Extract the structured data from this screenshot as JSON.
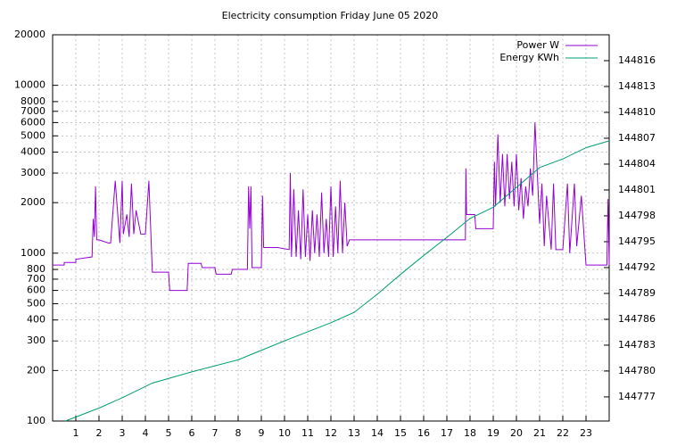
{
  "chart_data": {
    "type": "line",
    "title": "Electricity consumption Friday June 05 2020",
    "yscale": "log",
    "grid": true,
    "legend": "top-right",
    "xlim": [
      0,
      24
    ],
    "xticks": [
      1,
      2,
      3,
      4,
      5,
      6,
      7,
      8,
      9,
      10,
      11,
      12,
      13,
      14,
      15,
      16,
      17,
      18,
      19,
      20,
      21,
      22,
      23
    ],
    "ylim": [
      100,
      20000
    ],
    "yticks": [
      100,
      200,
      300,
      400,
      500,
      600,
      700,
      800,
      1000,
      2000,
      3000,
      4000,
      5000,
      6000,
      7000,
      8000,
      10000,
      20000
    ],
    "y2lim": [
      144774.2,
      144819
    ],
    "y2ticks": [
      144777,
      144780,
      144783,
      144786,
      144789,
      144792,
      144795,
      144798,
      144801,
      144804,
      144807,
      144810,
      144813,
      144816
    ],
    "series": [
      {
        "name": "Power W",
        "color": "#9400d3",
        "x": [
          0,
          0.5,
          0.5,
          1.0,
          1.0,
          1.7,
          1.75,
          1.8,
          1.85,
          1.9,
          2.0,
          2.4,
          2.5,
          2.7,
          2.9,
          3.0,
          3.05,
          3.2,
          3.3,
          3.4,
          3.5,
          3.6,
          3.8,
          4.0,
          4.15,
          4.3,
          4.35,
          5.0,
          5.05,
          5.8,
          5.85,
          6.4,
          6.45,
          7.0,
          7.05,
          7.7,
          7.75,
          8.4,
          8.45,
          8.5,
          8.55,
          8.6,
          9.0,
          9.05,
          9.1,
          9.7,
          10.2,
          10.25,
          10.3,
          10.4,
          10.5,
          10.6,
          10.7,
          10.8,
          10.9,
          11.0,
          11.1,
          11.2,
          11.3,
          11.4,
          11.5,
          11.6,
          11.7,
          11.8,
          11.9,
          12.0,
          12.1,
          12.2,
          12.3,
          12.4,
          12.5,
          12.6,
          12.7,
          12.8,
          17.8,
          17.82,
          17.85,
          18.2,
          18.25,
          19.0,
          19.05,
          19.1,
          19.2,
          19.3,
          19.4,
          19.5,
          19.6,
          19.7,
          19.8,
          19.9,
          20.0,
          20.1,
          20.2,
          20.3,
          20.4,
          20.5,
          20.6,
          20.7,
          20.8,
          20.9,
          21.0,
          21.1,
          21.2,
          21.3,
          21.5,
          21.6,
          21.7,
          22.0,
          22.2,
          22.3,
          22.5,
          22.6,
          22.8,
          23.0,
          23.1,
          23.9,
          23.95,
          24
        ],
        "values": [
          850,
          850,
          880,
          880,
          920,
          950,
          1600,
          1250,
          2500,
          1200,
          1200,
          1150,
          1150,
          2700,
          1150,
          2700,
          1300,
          1700,
          1250,
          2600,
          1300,
          1800,
          1300,
          1300,
          2700,
          770,
          770,
          770,
          600,
          600,
          870,
          870,
          820,
          820,
          750,
          750,
          800,
          800,
          2500,
          1400,
          2500,
          820,
          820,
          2200,
          1080,
          1080,
          1050,
          3000,
          950,
          2400,
          950,
          1800,
          920,
          2400,
          950,
          1700,
          900,
          1800,
          1000,
          1700,
          950,
          2300,
          1000,
          1600,
          950,
          2500,
          950,
          1900,
          1000,
          2700,
          1000,
          2000,
          1100,
          1200,
          1200,
          3200,
          1700,
          1700,
          1400,
          1400,
          3500,
          1900,
          5100,
          2000,
          3900,
          1900,
          3900,
          2100,
          3500,
          1900,
          3900,
          1800,
          2800,
          1600,
          2500,
          1900,
          3200,
          2200,
          6000,
          3000,
          1500,
          2600,
          1100,
          2200,
          1050,
          2600,
          1050,
          1050,
          2600,
          1000,
          2600,
          1100,
          2200,
          850,
          850,
          850,
          2100,
          850
        ]
      },
      {
        "name": "Energy KWh",
        "color": "#009e73",
        "axis": "y2",
        "x": [
          0.55,
          2,
          3,
          4,
          4.3,
          6,
          8,
          9,
          10,
          12,
          13,
          14,
          15,
          16,
          17,
          18,
          19,
          20,
          21,
          22,
          23,
          24
        ],
        "values": [
          144774.2,
          144775.7,
          144776.9,
          144778.2,
          144778.6,
          144779.9,
          144781.3,
          144782.4,
          144783.5,
          144785.6,
          144786.8,
          144788.9,
          144791.2,
          144793.4,
          144795.5,
          144797.7,
          144799.0,
          144801.3,
          144803.6,
          144804.6,
          144805.9,
          144806.7
        ]
      }
    ]
  }
}
